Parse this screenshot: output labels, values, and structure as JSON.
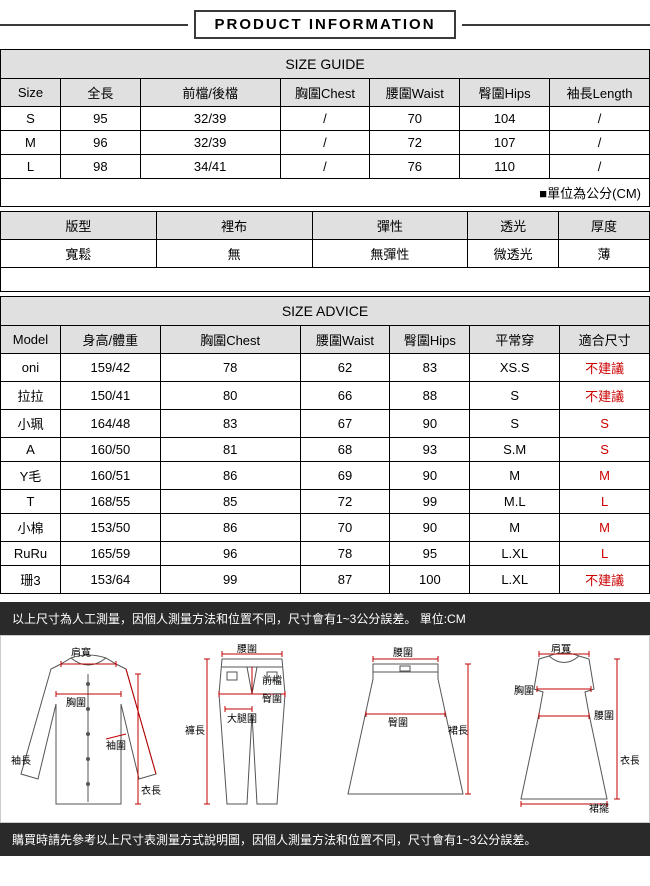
{
  "title": "PRODUCT INFORMATION",
  "sizeGuide": {
    "heading": "SIZE GUIDE",
    "columns": [
      "Size",
      "全長",
      "前檔/後檔",
      "胸圍Chest",
      "腰圍Waist",
      "臀圍Hips",
      "袖長Length"
    ],
    "rows": [
      [
        "S",
        "95",
        "32/39",
        "/",
        "70",
        "104",
        "/"
      ],
      [
        "M",
        "96",
        "32/39",
        "/",
        "72",
        "107",
        "/"
      ],
      [
        "L",
        "98",
        "34/41",
        "/",
        "76",
        "110",
        "/"
      ]
    ],
    "unitNote": "■單位為公分(CM)"
  },
  "attributes": {
    "headers": [
      "版型",
      "裡布",
      "彈性",
      "透光",
      "厚度"
    ],
    "values": [
      "寬鬆",
      "無",
      "無彈性",
      "微透光",
      "薄"
    ]
  },
  "sizeAdvice": {
    "heading": "SIZE ADVICE",
    "columns": [
      "Model",
      "身高/體重",
      "胸圍Chest",
      "腰圍Waist",
      "臀圍Hips",
      "平常穿",
      "適合尺寸"
    ],
    "rows": [
      {
        "cells": [
          "oni",
          "159/42",
          "78",
          "62",
          "83",
          "XS.S",
          "不建議"
        ],
        "redLast": true
      },
      {
        "cells": [
          "拉拉",
          "150/41",
          "80",
          "66",
          "88",
          "S",
          "不建議"
        ],
        "redLast": true
      },
      {
        "cells": [
          "小珮",
          "164/48",
          "83",
          "67",
          "90",
          "S",
          "S"
        ],
        "redLast": true
      },
      {
        "cells": [
          "A",
          "160/50",
          "81",
          "68",
          "93",
          "S.M",
          "S"
        ],
        "redLast": true
      },
      {
        "cells": [
          "Y毛",
          "160/51",
          "86",
          "69",
          "90",
          "M",
          "M"
        ],
        "redLast": true
      },
      {
        "cells": [
          "T",
          "168/55",
          "85",
          "72",
          "99",
          "M.L",
          "L"
        ],
        "redLast": true
      },
      {
        "cells": [
          "小棉",
          "153/50",
          "86",
          "70",
          "90",
          "M",
          "M"
        ],
        "redLast": true
      },
      {
        "cells": [
          "RuRu",
          "165/59",
          "96",
          "78",
          "95",
          "L.XL",
          "L"
        ],
        "redLast": true
      },
      {
        "cells": [
          "珊3",
          "153/64",
          "99",
          "87",
          "100",
          "L.XL",
          "不建議"
        ],
        "redLast": true
      }
    ]
  },
  "note1": "以上尺寸為人工測量，因個人測量方法和位置不同，尺寸會有1~3公分誤差。 單位:CM",
  "note2": "購買時請先參考以上尺寸表測量方式說明圖，因個人測量方法和位置不同，尺寸會有1~3公分誤差。",
  "diagram": {
    "labels": {
      "shoulder": "肩寬",
      "chest": "胸圍",
      "sleeve": "袖長",
      "cuff": "袖圍",
      "length": "衣長",
      "waist": "腰圍",
      "rise": "前檔",
      "hip": "臀圍",
      "thigh": "大腿圍",
      "inseam": "褲長",
      "skirtHip": "臀圍",
      "skirtLen": "裙長",
      "dressWaist": "腰圍",
      "dressLen": "衣長",
      "hem": "裙擺"
    },
    "measureColor": "#c00000",
    "lineColor": "#555"
  }
}
